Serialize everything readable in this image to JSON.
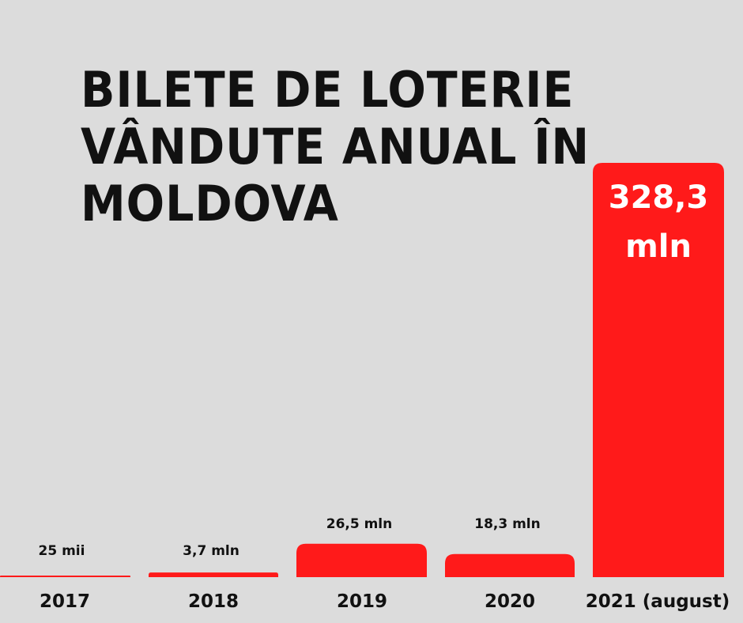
{
  "chart_data": {
    "type": "bar",
    "title_lines": [
      "BILETE DE LOTERIE",
      "VÂNDUTE ANUAL ÎN",
      "MOLDOVA"
    ],
    "categories": [
      "2017",
      "2018",
      "2019",
      "2020",
      "2021 (august)"
    ],
    "values": [
      0.025,
      3.7,
      26.5,
      18.3,
      328.3
    ],
    "data_labels": [
      "25 mii",
      "3,7 mln",
      "26,5 mln",
      "18,3 mln",
      "328,3 mln"
    ],
    "value_unit": "mln",
    "highlight_label_lines": [
      "328,3",
      "mln"
    ],
    "ylim": [
      0,
      328.3
    ],
    "grid": false,
    "legend": "none",
    "bar_color": "#ff1a1a",
    "background_color": "#dcdcdc",
    "text_color": "#111111"
  }
}
